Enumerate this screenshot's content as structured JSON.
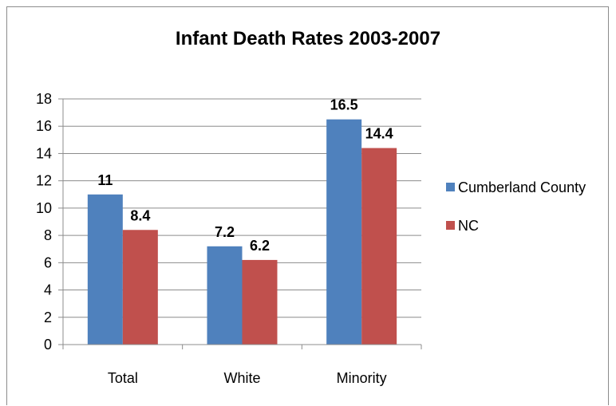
{
  "chart_data": {
    "type": "bar",
    "title": "Infant Death Rates 2003-2007",
    "categories": [
      "Total",
      "White",
      "Minority"
    ],
    "series": [
      {
        "name": "Cumberland County",
        "values": [
          11,
          7.2,
          16.5
        ],
        "color": "#4f81bd"
      },
      {
        "name": "NC",
        "values": [
          8.4,
          6.2,
          14.4
        ],
        "color": "#c0504d"
      }
    ],
    "data_labels": [
      [
        "11",
        "7.2",
        "16.5"
      ],
      [
        "8.4",
        "6.2",
        "14.4"
      ]
    ],
    "yticks": [
      "0",
      "2",
      "4",
      "6",
      "8",
      "10",
      "12",
      "14",
      "16",
      "18"
    ],
    "ylim": [
      0,
      18
    ],
    "xlabel": "",
    "ylabel": "",
    "grid": true,
    "legend_position": "right"
  }
}
